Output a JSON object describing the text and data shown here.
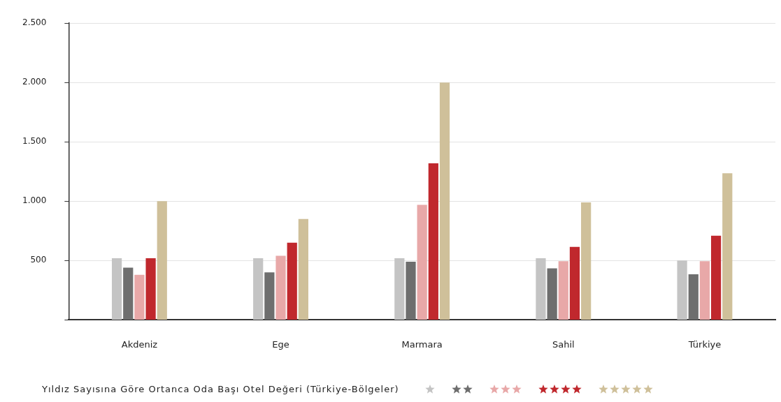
{
  "chart_data": {
    "type": "bar",
    "title": "Yıldız Sayısına Göre Ortanca Oda Başı Otel Değeri (Türkiye-Bölgeler)",
    "categories": [
      "Akdeniz",
      "Ege",
      "Marmara",
      "Sahil",
      "Türkiye"
    ],
    "series": [
      {
        "color": "#c4c4c4",
        "values": [
          520,
          520,
          520,
          520,
          500
        ]
      },
      {
        "color": "#6e6e6e",
        "values": [
          440,
          400,
          490,
          435,
          385
        ]
      },
      {
        "color": "#e8a8a8",
        "values": [
          380,
          540,
          970,
          495,
          495
        ]
      },
      {
        "color": "#c0282d",
        "values": [
          520,
          650,
          1320,
          615,
          710
        ]
      },
      {
        "color": "#cfc09a",
        "values": [
          1000,
          850,
          2000,
          990,
          1235
        ]
      }
    ],
    "ylim": [
      0,
      2500
    ],
    "yticks": [
      {
        "value": 0,
        "label": null
      },
      {
        "value": 500,
        "label": "500"
      },
      {
        "value": 1000,
        "label": "1.000"
      },
      {
        "value": 1500,
        "label": "1.500"
      },
      {
        "value": 2000,
        "label": "2.000"
      },
      {
        "value": 2500,
        "label": "2.500"
      }
    ],
    "grid": "y"
  }
}
